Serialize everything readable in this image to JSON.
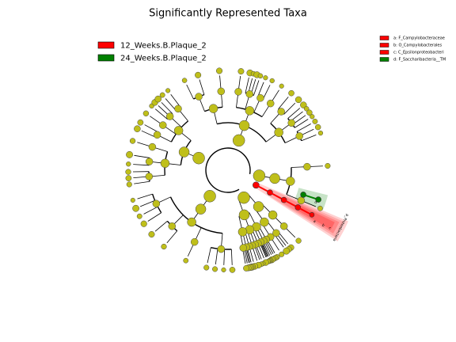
{
  "title": "Significantly Represented Taxa",
  "class_legend": [
    {
      "name": "12_Weeks.B.Plaque_2",
      "color": "#ff0000"
    },
    {
      "name": "24_Weeks.B.Plaque_2",
      "color": "#008000"
    }
  ],
  "taxa_legend": [
    {
      "label": "a: F_Campylobacteraceae",
      "color": "#ff0000"
    },
    {
      "label": "b: O_Campylobacterales",
      "color": "#ff0000"
    },
    {
      "label": "c: C_Epsilonproteobacteri",
      "color": "#ff0000"
    },
    {
      "label": "d: F_Saccharibacteria__TM",
      "color": "#008000"
    }
  ],
  "clade_labels": [
    "a",
    "b",
    "c",
    "d",
    "p_Proteobacteria"
  ]
}
